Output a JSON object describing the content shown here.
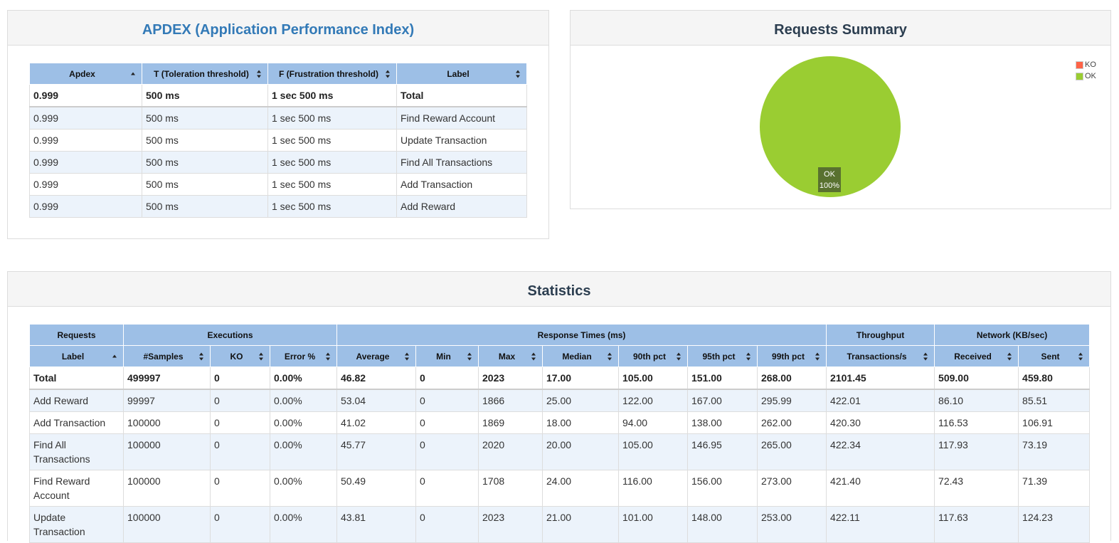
{
  "apdex": {
    "title": "APDEX (Application Performance Index)",
    "headers": [
      "Apdex",
      "T (Toleration threshold)",
      "F (Frustration threshold)",
      "Label"
    ],
    "rows": [
      [
        "0.999",
        "500 ms",
        "1 sec 500 ms",
        "Total"
      ],
      [
        "0.999",
        "500 ms",
        "1 sec 500 ms",
        "Find Reward Account"
      ],
      [
        "0.999",
        "500 ms",
        "1 sec 500 ms",
        "Update Transaction"
      ],
      [
        "0.999",
        "500 ms",
        "1 sec 500 ms",
        "Find All Transactions"
      ],
      [
        "0.999",
        "500 ms",
        "1 sec 500 ms",
        "Add Transaction"
      ],
      [
        "0.999",
        "500 ms",
        "1 sec 500 ms",
        "Add Reward"
      ]
    ]
  },
  "summary": {
    "title": "Requests Summary",
    "slice_label": "OK",
    "slice_pct": "100%",
    "legend": [
      {
        "label": "KO",
        "color": "#ff6347"
      },
      {
        "label": "OK",
        "color": "#9acd32"
      }
    ]
  },
  "chart_data": {
    "type": "pie",
    "categories": [
      "KO",
      "OK"
    ],
    "values": [
      0,
      100
    ],
    "colors": [
      "#ff6347",
      "#9acd32"
    ],
    "data_labels": [
      "",
      "OK 100%"
    ],
    "legend_position": "top-right"
  },
  "statistics": {
    "title": "Statistics",
    "group_headers": [
      "Requests",
      "Executions",
      "Response Times (ms)",
      "Throughput",
      "Network (KB/sec)"
    ],
    "headers": [
      "Label",
      "#Samples",
      "KO",
      "Error %",
      "Average",
      "Min",
      "Max",
      "Median",
      "90th pct",
      "95th pct",
      "99th pct",
      "Transactions/s",
      "Received",
      "Sent"
    ],
    "rows": [
      [
        "Total",
        "499997",
        "0",
        "0.00%",
        "46.82",
        "0",
        "2023",
        "17.00",
        "105.00",
        "151.00",
        "268.00",
        "2101.45",
        "509.00",
        "459.80"
      ],
      [
        "Add Reward",
        "99997",
        "0",
        "0.00%",
        "53.04",
        "0",
        "1866",
        "25.00",
        "122.00",
        "167.00",
        "295.99",
        "422.01",
        "86.10",
        "85.51"
      ],
      [
        "Add Transaction",
        "100000",
        "0",
        "0.00%",
        "41.02",
        "0",
        "1869",
        "18.00",
        "94.00",
        "138.00",
        "262.00",
        "420.30",
        "116.53",
        "106.91"
      ],
      [
        "Find All Transactions",
        "100000",
        "0",
        "0.00%",
        "45.77",
        "0",
        "2020",
        "20.00",
        "105.00",
        "146.95",
        "265.00",
        "422.34",
        "117.93",
        "73.19"
      ],
      [
        "Find Reward Account",
        "100000",
        "0",
        "0.00%",
        "50.49",
        "0",
        "1708",
        "24.00",
        "116.00",
        "156.00",
        "273.00",
        "421.40",
        "72.43",
        "71.39"
      ],
      [
        "Update Transaction",
        "100000",
        "0",
        "0.00%",
        "43.81",
        "0",
        "2023",
        "21.00",
        "101.00",
        "148.00",
        "253.00",
        "422.11",
        "117.63",
        "124.23"
      ]
    ]
  }
}
